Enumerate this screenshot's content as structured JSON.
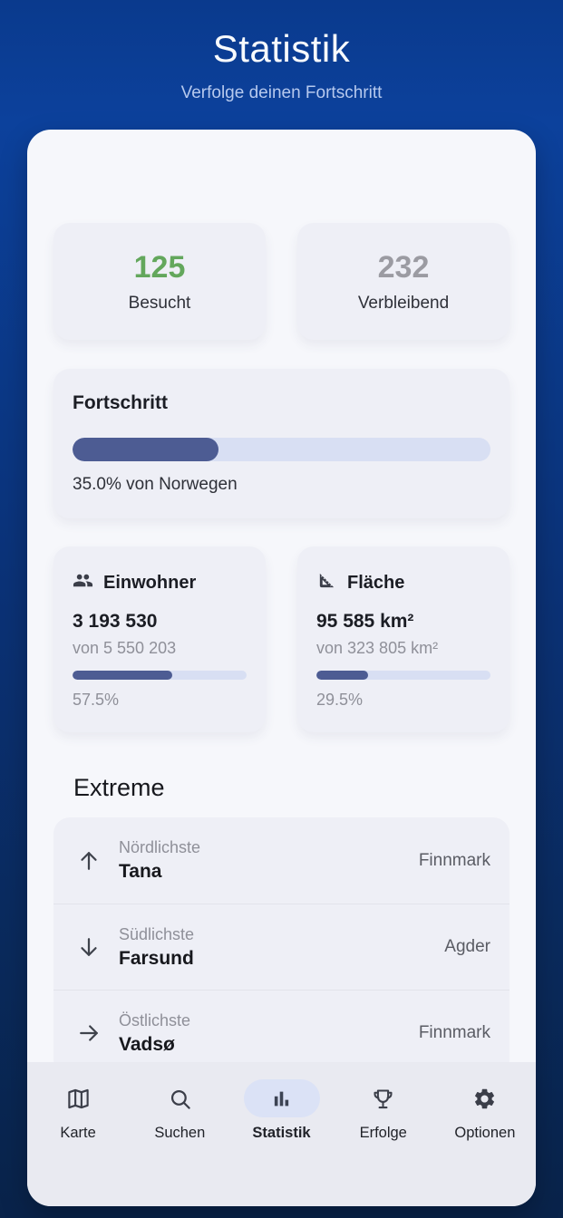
{
  "header": {
    "title": "Statistik",
    "subtitle": "Verfolge deinen Fortschritt"
  },
  "stats": {
    "visited": {
      "value": "125",
      "label": "Besucht"
    },
    "remaining": {
      "value": "232",
      "label": "Verbleibend"
    }
  },
  "progress": {
    "title": "Fortschritt",
    "percent": 35.0,
    "caption": "35.0% von Norwegen"
  },
  "metrics": [
    {
      "icon": "people-icon",
      "title": "Einwohner",
      "value": "3 193 530",
      "of": "von 5 550 203",
      "percent": 57.5,
      "percent_label": "57.5%"
    },
    {
      "icon": "ruler-icon",
      "title": "Fläche",
      "value": "95 585 km²",
      "of": "von 323 805 km²",
      "percent": 29.5,
      "percent_label": "29.5%"
    }
  ],
  "extremes": {
    "heading": "Extreme",
    "items": [
      {
        "direction": "north",
        "label": "Nördlichste",
        "value": "Tana",
        "region": "Finnmark"
      },
      {
        "direction": "south",
        "label": "Südlichste",
        "value": "Farsund",
        "region": "Agder"
      },
      {
        "direction": "east",
        "label": "Östlichste",
        "value": "Vadsø",
        "region": "Finnmark"
      }
    ]
  },
  "tabbar": {
    "items": [
      {
        "icon": "map-icon",
        "label": "Karte",
        "active": false
      },
      {
        "icon": "search-icon",
        "label": "Suchen",
        "active": false
      },
      {
        "icon": "bar-chart-icon",
        "label": "Statistik",
        "active": true
      },
      {
        "icon": "trophy-icon",
        "label": "Erfolge",
        "active": false
      },
      {
        "icon": "gear-icon",
        "label": "Optionen",
        "active": false
      }
    ]
  },
  "colors": {
    "green": "#63a75c",
    "muted-num": "#9b9ba2",
    "bar-fill": "#4d5c93",
    "bar-track": "#d8dff3",
    "pill": "#dbe2f6",
    "icon": "#3b3e49"
  }
}
